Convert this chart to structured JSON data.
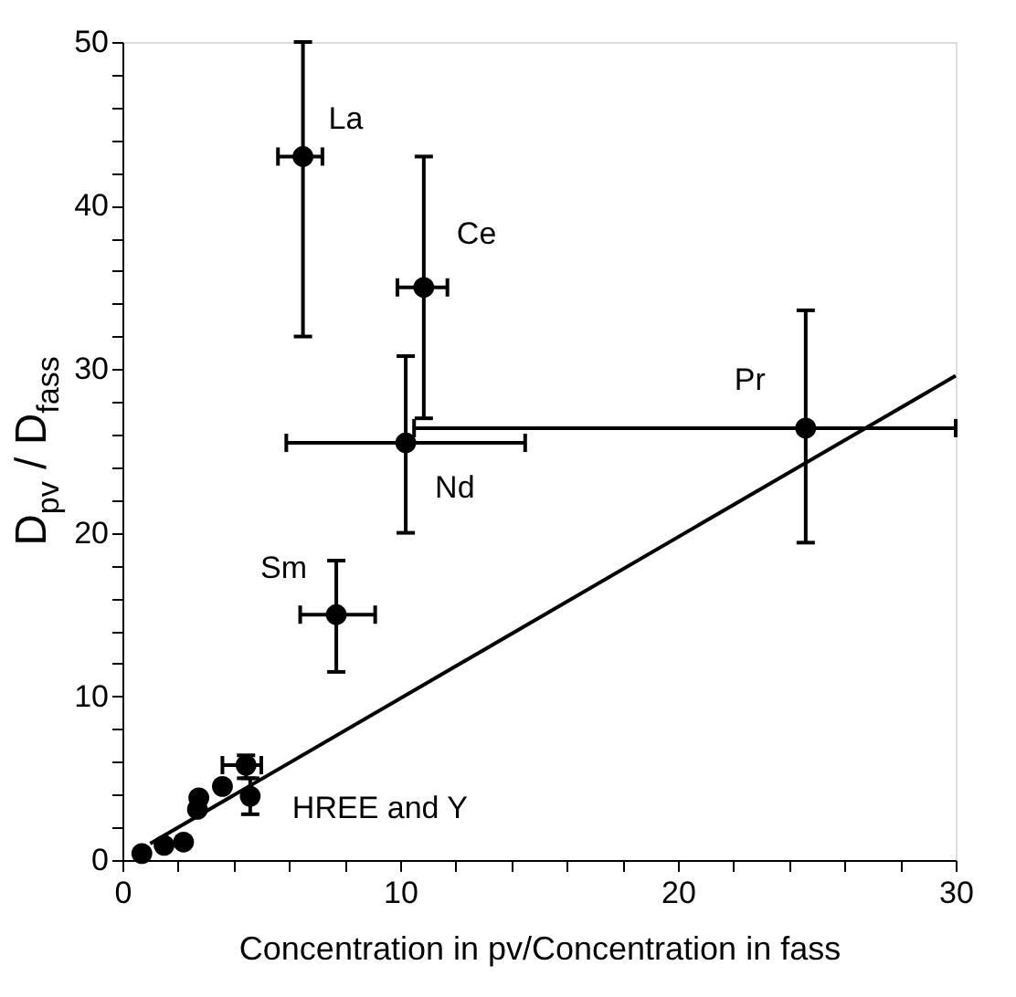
{
  "chart_data": {
    "type": "scatter",
    "xlabel": "Concentration in pv/Concentration in fass",
    "ylabel": "D$_{pv}$ / D$_{fass}$",
    "xlim": [
      0,
      30
    ],
    "ylim": [
      0,
      50
    ],
    "xticks": [
      0,
      {
        "value": 2,
        "label": null
      },
      {
        "value": 4,
        "label": null
      },
      {
        "value": 6,
        "label": null
      },
      {
        "value": 8,
        "label": null
      },
      10,
      {
        "value": 12,
        "label": null
      },
      {
        "value": 14,
        "label": null
      },
      {
        "value": 16,
        "label": null
      },
      {
        "value": 18,
        "label": null
      },
      20,
      {
        "value": 22,
        "label": null
      },
      {
        "value": 24,
        "label": null
      },
      {
        "value": 26,
        "label": null
      },
      {
        "value": 28,
        "label": null
      },
      30
    ],
    "yticks": [
      0,
      {
        "value": 2,
        "label": null
      },
      {
        "value": 4,
        "label": null
      },
      {
        "value": 6,
        "label": null
      },
      {
        "value": 8,
        "label": null
      },
      10,
      {
        "value": 12,
        "label": null
      },
      {
        "value": 14,
        "label": null
      },
      {
        "value": 16,
        "label": null
      },
      {
        "value": 18,
        "label": null
      },
      20,
      {
        "value": 22,
        "label": null
      },
      {
        "value": 24,
        "label": null
      },
      {
        "value": 26,
        "label": null
      },
      {
        "value": 28,
        "label": null
      },
      30,
      {
        "value": 32,
        "label": null
      },
      {
        "value": 34,
        "label": null
      },
      {
        "value": 36,
        "label": null
      },
      {
        "value": 38,
        "label": null
      },
      40,
      {
        "value": 42,
        "label": null
      },
      {
        "value": 44,
        "label": null
      },
      {
        "value": 46,
        "label": null
      },
      {
        "value": 48,
        "label": null
      },
      50
    ],
    "grid": false,
    "marker": "circle",
    "series": [
      {
        "color": "#000000",
        "x": [
          6.5,
          10.85,
          10.2,
          24.6,
          7.7,
          0.7,
          1.5,
          2.2,
          2.7,
          2.75,
          3.6,
          4.45,
          4.6
        ],
        "values": [
          43,
          35,
          25.5,
          26.4,
          15,
          0.4,
          0.9,
          1.1,
          3.1,
          3.8,
          4.5,
          5.8,
          3.9
        ],
        "errors": [
          [
            32,
            50
          ],
          [
            27,
            43
          ],
          [
            20,
            30.8
          ],
          [
            19.4,
            33.6
          ],
          [
            11.5,
            18.3
          ],
          null,
          null,
          null,
          null,
          null,
          null,
          [
            5,
            6.4
          ],
          [
            2.8,
            5
          ]
        ],
        "xerrors": [
          [
            5.6,
            7.2
          ],
          [
            9.9,
            11.7
          ],
          [
            5.9,
            14.5
          ],
          [
            10.5,
            30
          ],
          [
            6.4,
            9.1
          ],
          null,
          null,
          null,
          null,
          null,
          null,
          [
            3.6,
            5
          ],
          null
        ]
      },
      {
        "type": "line",
        "color": "#000000",
        "marker": "none",
        "line_style": "solid",
        "x": [
          1,
          30
        ],
        "values": [
          1,
          29.6
        ]
      }
    ],
    "annotations": [
      {
        "text": "La",
        "x": 6.5,
        "y": 43
      },
      {
        "text": "Ce",
        "x": 10.85,
        "y": 35
      },
      {
        "text": "Nd",
        "x": 10.2,
        "y": 25.5
      },
      {
        "text": "Pr",
        "x": 24.6,
        "y": 26.4
      },
      {
        "text": "Sm",
        "x": 7.7,
        "y": 15
      },
      {
        "text": "HREE and Y",
        "x": 4.6,
        "y": 3.9
      }
    ]
  }
}
